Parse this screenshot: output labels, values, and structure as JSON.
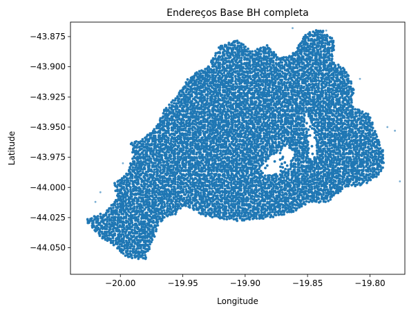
{
  "chart_data": {
    "type": "scatter",
    "title": "Endereços Base BH completa",
    "xlabel": "Longitude",
    "ylabel": "Latitude",
    "xlim": [
      -20.04,
      -19.772
    ],
    "ylim": [
      -44.072,
      -43.863
    ],
    "x_ticks": [
      {
        "value": -20.0,
        "label": "−20.00"
      },
      {
        "value": -19.95,
        "label": "−19.95"
      },
      {
        "value": -19.9,
        "label": "−19.90"
      },
      {
        "value": -19.85,
        "label": "−19.85"
      },
      {
        "value": -19.8,
        "label": "−19.80"
      }
    ],
    "y_ticks": [
      {
        "value": -43.875,
        "label": "−43.875"
      },
      {
        "value": -43.9,
        "label": "−43.900"
      },
      {
        "value": -43.925,
        "label": "−43.925"
      },
      {
        "value": -43.95,
        "label": "−43.950"
      },
      {
        "value": -43.975,
        "label": "−43.975"
      },
      {
        "value": -44.0,
        "label": "−44.000"
      },
      {
        "value": -44.025,
        "label": "−44.025"
      },
      {
        "value": -44.05,
        "label": "−44.050"
      }
    ],
    "grid": false,
    "legend": "none",
    "marker_color": "#1f77b4",
    "region_outline": [
      [
        -20.028,
        -44.027
      ],
      [
        -20.012,
        -44.02
      ],
      [
        -20.003,
        -44.008
      ],
      [
        -20.005,
        -43.996
      ],
      [
        -19.995,
        -43.988
      ],
      [
        -19.99,
        -43.975
      ],
      [
        -19.992,
        -43.963
      ],
      [
        -19.982,
        -43.96
      ],
      [
        -19.97,
        -43.948
      ],
      [
        -19.965,
        -43.935
      ],
      [
        -19.955,
        -43.925
      ],
      [
        -19.945,
        -43.908
      ],
      [
        -19.93,
        -43.9
      ],
      [
        -19.92,
        -43.882
      ],
      [
        -19.905,
        -43.878
      ],
      [
        -19.895,
        -43.887
      ],
      [
        -19.882,
        -43.882
      ],
      [
        -19.872,
        -43.893
      ],
      [
        -19.86,
        -43.888
      ],
      [
        -19.852,
        -43.873
      ],
      [
        -19.84,
        -43.868
      ],
      [
        -19.828,
        -43.878
      ],
      [
        -19.83,
        -43.895
      ],
      [
        -19.82,
        -43.902
      ],
      [
        -19.812,
        -43.918
      ],
      [
        -19.815,
        -43.932
      ],
      [
        -19.8,
        -43.94
      ],
      [
        -19.795,
        -43.956
      ],
      [
        -19.788,
        -43.972
      ],
      [
        -19.79,
        -43.988
      ],
      [
        -19.805,
        -43.998
      ],
      [
        -19.82,
        -44.0
      ],
      [
        -19.835,
        -44.013
      ],
      [
        -19.85,
        -44.013
      ],
      [
        -19.86,
        -44.02
      ],
      [
        -19.875,
        -44.024
      ],
      [
        -19.89,
        -44.027
      ],
      [
        -19.905,
        -44.028
      ],
      [
        -19.925,
        -44.025
      ],
      [
        -19.935,
        -44.023
      ],
      [
        -19.95,
        -44.015
      ],
      [
        -19.955,
        -44.022
      ],
      [
        -19.965,
        -44.025
      ],
      [
        -19.97,
        -44.034
      ],
      [
        -19.975,
        -44.047
      ],
      [
        -19.98,
        -44.06
      ],
      [
        -19.995,
        -44.058
      ],
      [
        -20.005,
        -44.048
      ],
      [
        -20.018,
        -44.04
      ]
    ],
    "holes": [
      [
        [
          -19.888,
          -43.983
        ],
        [
          -19.88,
          -43.975
        ],
        [
          -19.866,
          -43.966
        ],
        [
          -19.86,
          -43.972
        ],
        [
          -19.865,
          -43.985
        ],
        [
          -19.878,
          -43.99
        ],
        [
          -19.885,
          -43.99
        ]
      ],
      [
        [
          -19.853,
          -43.935
        ],
        [
          -19.847,
          -43.945
        ],
        [
          -19.843,
          -43.962
        ],
        [
          -19.845,
          -43.978
        ],
        [
          -19.849,
          -43.975
        ],
        [
          -19.85,
          -43.955
        ],
        [
          -19.852,
          -43.942
        ]
      ]
    ],
    "outliers": [
      [
        -20.02,
        -44.012
      ],
      [
        -20.016,
        -44.004
      ],
      [
        -19.998,
        -43.98
      ],
      [
        -19.786,
        -43.95
      ],
      [
        -19.78,
        -43.953
      ],
      [
        -19.808,
        -43.91
      ],
      [
        -19.835,
        -43.87
      ],
      [
        -19.862,
        -43.868
      ],
      [
        -19.776,
        -43.995
      ]
    ]
  }
}
